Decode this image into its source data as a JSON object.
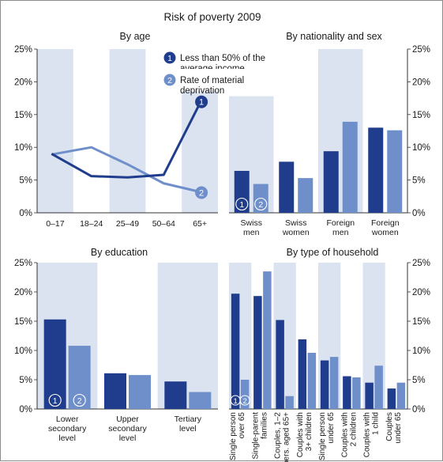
{
  "title": "Risk of poverty 2009",
  "colors": {
    "series1": "#1f3d8c",
    "series2": "#6f8fcb",
    "band": "#dbe2f0",
    "axis": "#333333",
    "marker_text": "#ffffff"
  },
  "legend": {
    "items": [
      {
        "marker": "1",
        "text_lines": [
          "Less than 50% of the",
          "average income"
        ]
      },
      {
        "marker": "2",
        "text_lines": [
          "Rate of material",
          "deprivation"
        ]
      }
    ]
  },
  "chart_data": [
    {
      "id": "age",
      "type": "line",
      "title": "By age",
      "categories": [
        "0–17",
        "18–24",
        "25–49",
        "50–64",
        "65+"
      ],
      "ylim": [
        0,
        25
      ],
      "yticks": [
        "0%",
        "5%",
        "10%",
        "15%",
        "20%",
        "25%"
      ],
      "series": [
        {
          "name": "Less than 50% of the average income",
          "marker": "1",
          "values": [
            9.0,
            5.6,
            5.4,
            5.8,
            16.7
          ]
        },
        {
          "name": "Rate of material deprivation",
          "marker": "2",
          "values": [
            8.9,
            10.0,
            7.4,
            4.5,
            3.2
          ]
        }
      ]
    },
    {
      "id": "nationality",
      "type": "bar",
      "title": "By nationality and sex",
      "categories": [
        [
          "Swiss",
          "men"
        ],
        [
          "Swiss",
          "women"
        ],
        [
          "Foreign",
          "men"
        ],
        [
          "Foreign",
          "women"
        ]
      ],
      "ylim": [
        0,
        25
      ],
      "yticks": [
        "0%",
        "5%",
        "10%",
        "15%",
        "20%",
        "25%"
      ],
      "series": [
        {
          "name": "Less than 50% of the average income",
          "marker": "1",
          "values": [
            6.4,
            7.8,
            9.4,
            13.0
          ]
        },
        {
          "name": "Rate of material deprivation",
          "marker": "2",
          "values": [
            4.4,
            5.3,
            13.9,
            12.6
          ]
        }
      ]
    },
    {
      "id": "education",
      "type": "bar",
      "title": "By education",
      "categories": [
        [
          "Lower",
          "secondary",
          "level"
        ],
        [
          "Upper",
          "secondary",
          "level"
        ],
        [
          "Tertiary",
          "level"
        ]
      ],
      "ylim": [
        0,
        25
      ],
      "yticks": [
        "0%",
        "5%",
        "10%",
        "15%",
        "20%",
        "25%"
      ],
      "series": [
        {
          "name": "Less than 50% of the average income",
          "marker": "1",
          "values": [
            15.3,
            6.1,
            4.7
          ]
        },
        {
          "name": "Rate of material deprivation",
          "marker": "2",
          "values": [
            10.8,
            5.8,
            2.9
          ]
        }
      ]
    },
    {
      "id": "household",
      "type": "bar",
      "title": "By type of household",
      "categories": [
        [
          "Single person",
          "over 65"
        ],
        [
          "Single-parent",
          "families"
        ],
        [
          "Couples, 1–2",
          "pers. aged 65+"
        ],
        [
          "Couples with",
          "3+ children"
        ],
        [
          "Single person",
          "under 65"
        ],
        [
          "Couples with",
          "2 children"
        ],
        [
          "Couples with",
          "1 child"
        ],
        [
          "Couples",
          "under 65"
        ]
      ],
      "ylim": [
        0,
        25
      ],
      "yticks": [
        "0%",
        "5%",
        "10%",
        "15%",
        "20%",
        "25%"
      ],
      "series": [
        {
          "name": "Less than 50% of the average income",
          "marker": "1",
          "values": [
            19.7,
            19.3,
            15.2,
            11.9,
            8.3,
            5.6,
            4.5,
            3.5
          ]
        },
        {
          "name": "Rate of material deprivation",
          "marker": "2",
          "values": [
            5.0,
            23.5,
            2.2,
            9.6,
            8.9,
            5.4,
            7.4,
            4.5
          ]
        }
      ]
    }
  ]
}
